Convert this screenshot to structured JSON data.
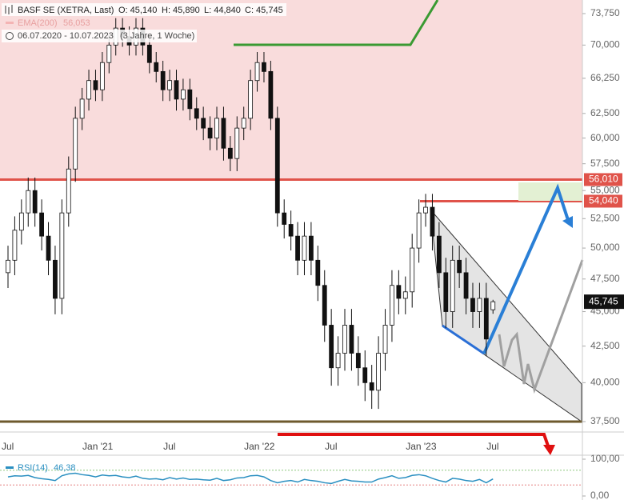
{
  "chart_data": [
    {
      "type": "candlestick",
      "title": "BASF SE (XETRA, Last)",
      "ohlc_labels": [
        "O: 45,140",
        "H: 45,890",
        "L: 44,840",
        "C: 45,745"
      ],
      "indicator_label": "EMA(200)",
      "indicator_value": "56,053",
      "date_range": "06.07.2020 - 10.07.2023",
      "period": "(3 Jahre, 1 Woche)",
      "categories": [
        "Jul",
        null,
        null,
        null,
        null,
        null,
        null,
        null,
        null,
        null,
        null,
        null,
        "Jan '21",
        null,
        null,
        null,
        null,
        null,
        null,
        null,
        null,
        null,
        null,
        null,
        "Jul",
        null,
        null,
        null,
        null,
        null,
        null,
        null,
        null,
        null,
        null,
        null,
        "Jan '22",
        null,
        null,
        null,
        null,
        null,
        null,
        null,
        null,
        null,
        null,
        null,
        "Jul",
        null,
        null,
        null,
        null,
        null,
        null,
        null,
        null,
        null,
        null,
        null,
        "Jan '23",
        null,
        null,
        null,
        null,
        null,
        null,
        null,
        null,
        null,
        null,
        null,
        "Jul"
      ],
      "open": [
        48,
        49,
        51.5,
        53,
        55,
        53,
        51,
        49,
        46,
        53,
        57,
        62,
        64,
        66,
        65,
        68,
        70,
        72,
        71,
        70,
        72,
        70,
        68,
        67,
        65,
        66,
        64,
        65,
        63,
        62,
        61,
        60,
        62,
        59,
        58,
        61,
        62,
        66,
        68,
        67,
        62,
        53,
        52,
        51,
        49,
        51,
        49,
        47,
        44,
        41,
        42,
        44,
        42,
        41,
        40,
        39.5,
        42,
        44,
        47,
        46,
        46.5,
        50,
        53,
        53.5,
        51,
        48,
        45,
        49,
        48,
        46,
        45,
        46,
        45.14
      ],
      "high": [
        50.2,
        52.7,
        54.2,
        56.2,
        56.2,
        54.2,
        52.2,
        50.2,
        54.2,
        58.2,
        63.2,
        65.2,
        67.2,
        67.2,
        69.2,
        71.2,
        73.2,
        73.2,
        72.2,
        73.2,
        73.2,
        71.2,
        69.2,
        68.2,
        67.2,
        67.2,
        66.2,
        66.2,
        64.2,
        63.2,
        62.2,
        63.2,
        63.2,
        60.2,
        62.2,
        63.2,
        67.2,
        69.2,
        69.2,
        68.2,
        63.2,
        54.2,
        53.2,
        52.2,
        52.2,
        52.2,
        50.2,
        48.2,
        45.2,
        43.2,
        45.2,
        45.2,
        43.2,
        42.2,
        41.2,
        43.2,
        45.2,
        48.2,
        48.2,
        47.7,
        51.2,
        54.2,
        54.7,
        54.7,
        52.2,
        49.2,
        50.2,
        50.2,
        49.2,
        47.2,
        47.2,
        47.2,
        45.89
      ],
      "low": [
        46.8,
        47.8,
        50.3,
        51.8,
        51.8,
        49.8,
        47.8,
        44.8,
        44.8,
        51.8,
        55.8,
        60.8,
        62.8,
        63.8,
        63.8,
        66.8,
        68.8,
        69.8,
        68.8,
        68.8,
        68.8,
        66.8,
        65.8,
        63.8,
        63.8,
        62.8,
        62.8,
        61.8,
        60.8,
        59.8,
        58.8,
        58.8,
        57.8,
        56.8,
        56.8,
        59.8,
        60.8,
        64.8,
        65.8,
        60.8,
        51.8,
        50.8,
        49.8,
        47.8,
        47.8,
        47.8,
        45.8,
        42.8,
        39.8,
        39.8,
        40.8,
        40.8,
        39.8,
        38.8,
        38.3,
        38.3,
        40.8,
        42.8,
        44.8,
        44.8,
        45.3,
        48.8,
        51.8,
        49.8,
        46.8,
        43.8,
        43.8,
        46.8,
        44.8,
        43.8,
        43.8,
        41.8,
        44.84
      ],
      "close": [
        49,
        51.5,
        53,
        55,
        53,
        51,
        49,
        46,
        53,
        57,
        62,
        64,
        66,
        65,
        68,
        70,
        72,
        71,
        70,
        72,
        70,
        68,
        67,
        65,
        66,
        64,
        65,
        63,
        62,
        61,
        60,
        62,
        59,
        58,
        61,
        62,
        66,
        68,
        67,
        62,
        53,
        52,
        51,
        49,
        51,
        49,
        47,
        44,
        41,
        42,
        44,
        42,
        41,
        40,
        39.5,
        42,
        44,
        47,
        46,
        46.5,
        50,
        53,
        53.5,
        51,
        48,
        45,
        49,
        48,
        46,
        45,
        46,
        43,
        45.745
      ],
      "last_price": {
        "value": 45.745,
        "label": "45,745"
      },
      "levels": [
        {
          "value": 56.01,
          "label": "56,010",
          "color": "#e0534a"
        },
        {
          "value": 54.04,
          "label": "54,040",
          "color": "#e0534a"
        }
      ],
      "log_scale": true,
      "ylim": [
        36.86,
        75.43
      ],
      "yticks": [
        {
          "value": 73.75,
          "label": "73,750"
        },
        {
          "value": 70,
          "label": "70,000"
        },
        {
          "value": 66.25,
          "label": "66,250"
        },
        {
          "value": 62.5,
          "label": "62,500"
        },
        {
          "value": 60,
          "label": "60,000"
        },
        {
          "value": 57.5,
          "label": "57,500"
        },
        {
          "value": 55,
          "label": "55,000"
        },
        {
          "value": 52.5,
          "label": "52,500"
        },
        {
          "value": 50,
          "label": "50,000"
        },
        {
          "value": 47.5,
          "label": "47,500"
        },
        {
          "value": 45,
          "label": "45,000"
        },
        {
          "value": 42.5,
          "label": "42,500"
        },
        {
          "value": 40,
          "label": "40,000"
        },
        {
          "value": 37.5,
          "label": "37,500"
        }
      ],
      "grid": true,
      "up_color": "#ffffff",
      "down_color": "#111111"
    },
    {
      "type": "line",
      "series": [
        {
          "name": "RSI(14)",
          "value_label": "46,38",
          "color": "#2a8fc1",
          "values": [
            52,
            55,
            54,
            56,
            50,
            47,
            45,
            42,
            55,
            60,
            62,
            58,
            56,
            52,
            57,
            55,
            56,
            52,
            50,
            54,
            48,
            46,
            47,
            44,
            50,
            46,
            49,
            45,
            46,
            44,
            43,
            48,
            42,
            44,
            49,
            50,
            55,
            56,
            52,
            42,
            36,
            40,
            42,
            38,
            45,
            42,
            40,
            36,
            34,
            40,
            45,
            41,
            40,
            38,
            38,
            46,
            50,
            55,
            48,
            50,
            56,
            58,
            55,
            48,
            42,
            38,
            48,
            46,
            42,
            40,
            45,
            36,
            46.38
          ]
        }
      ],
      "ylim": [
        0,
        100
      ],
      "yticks": [
        {
          "value": 100,
          "label": "100,00"
        },
        {
          "value": 0,
          "label": "0,00"
        }
      ]
    }
  ]
}
